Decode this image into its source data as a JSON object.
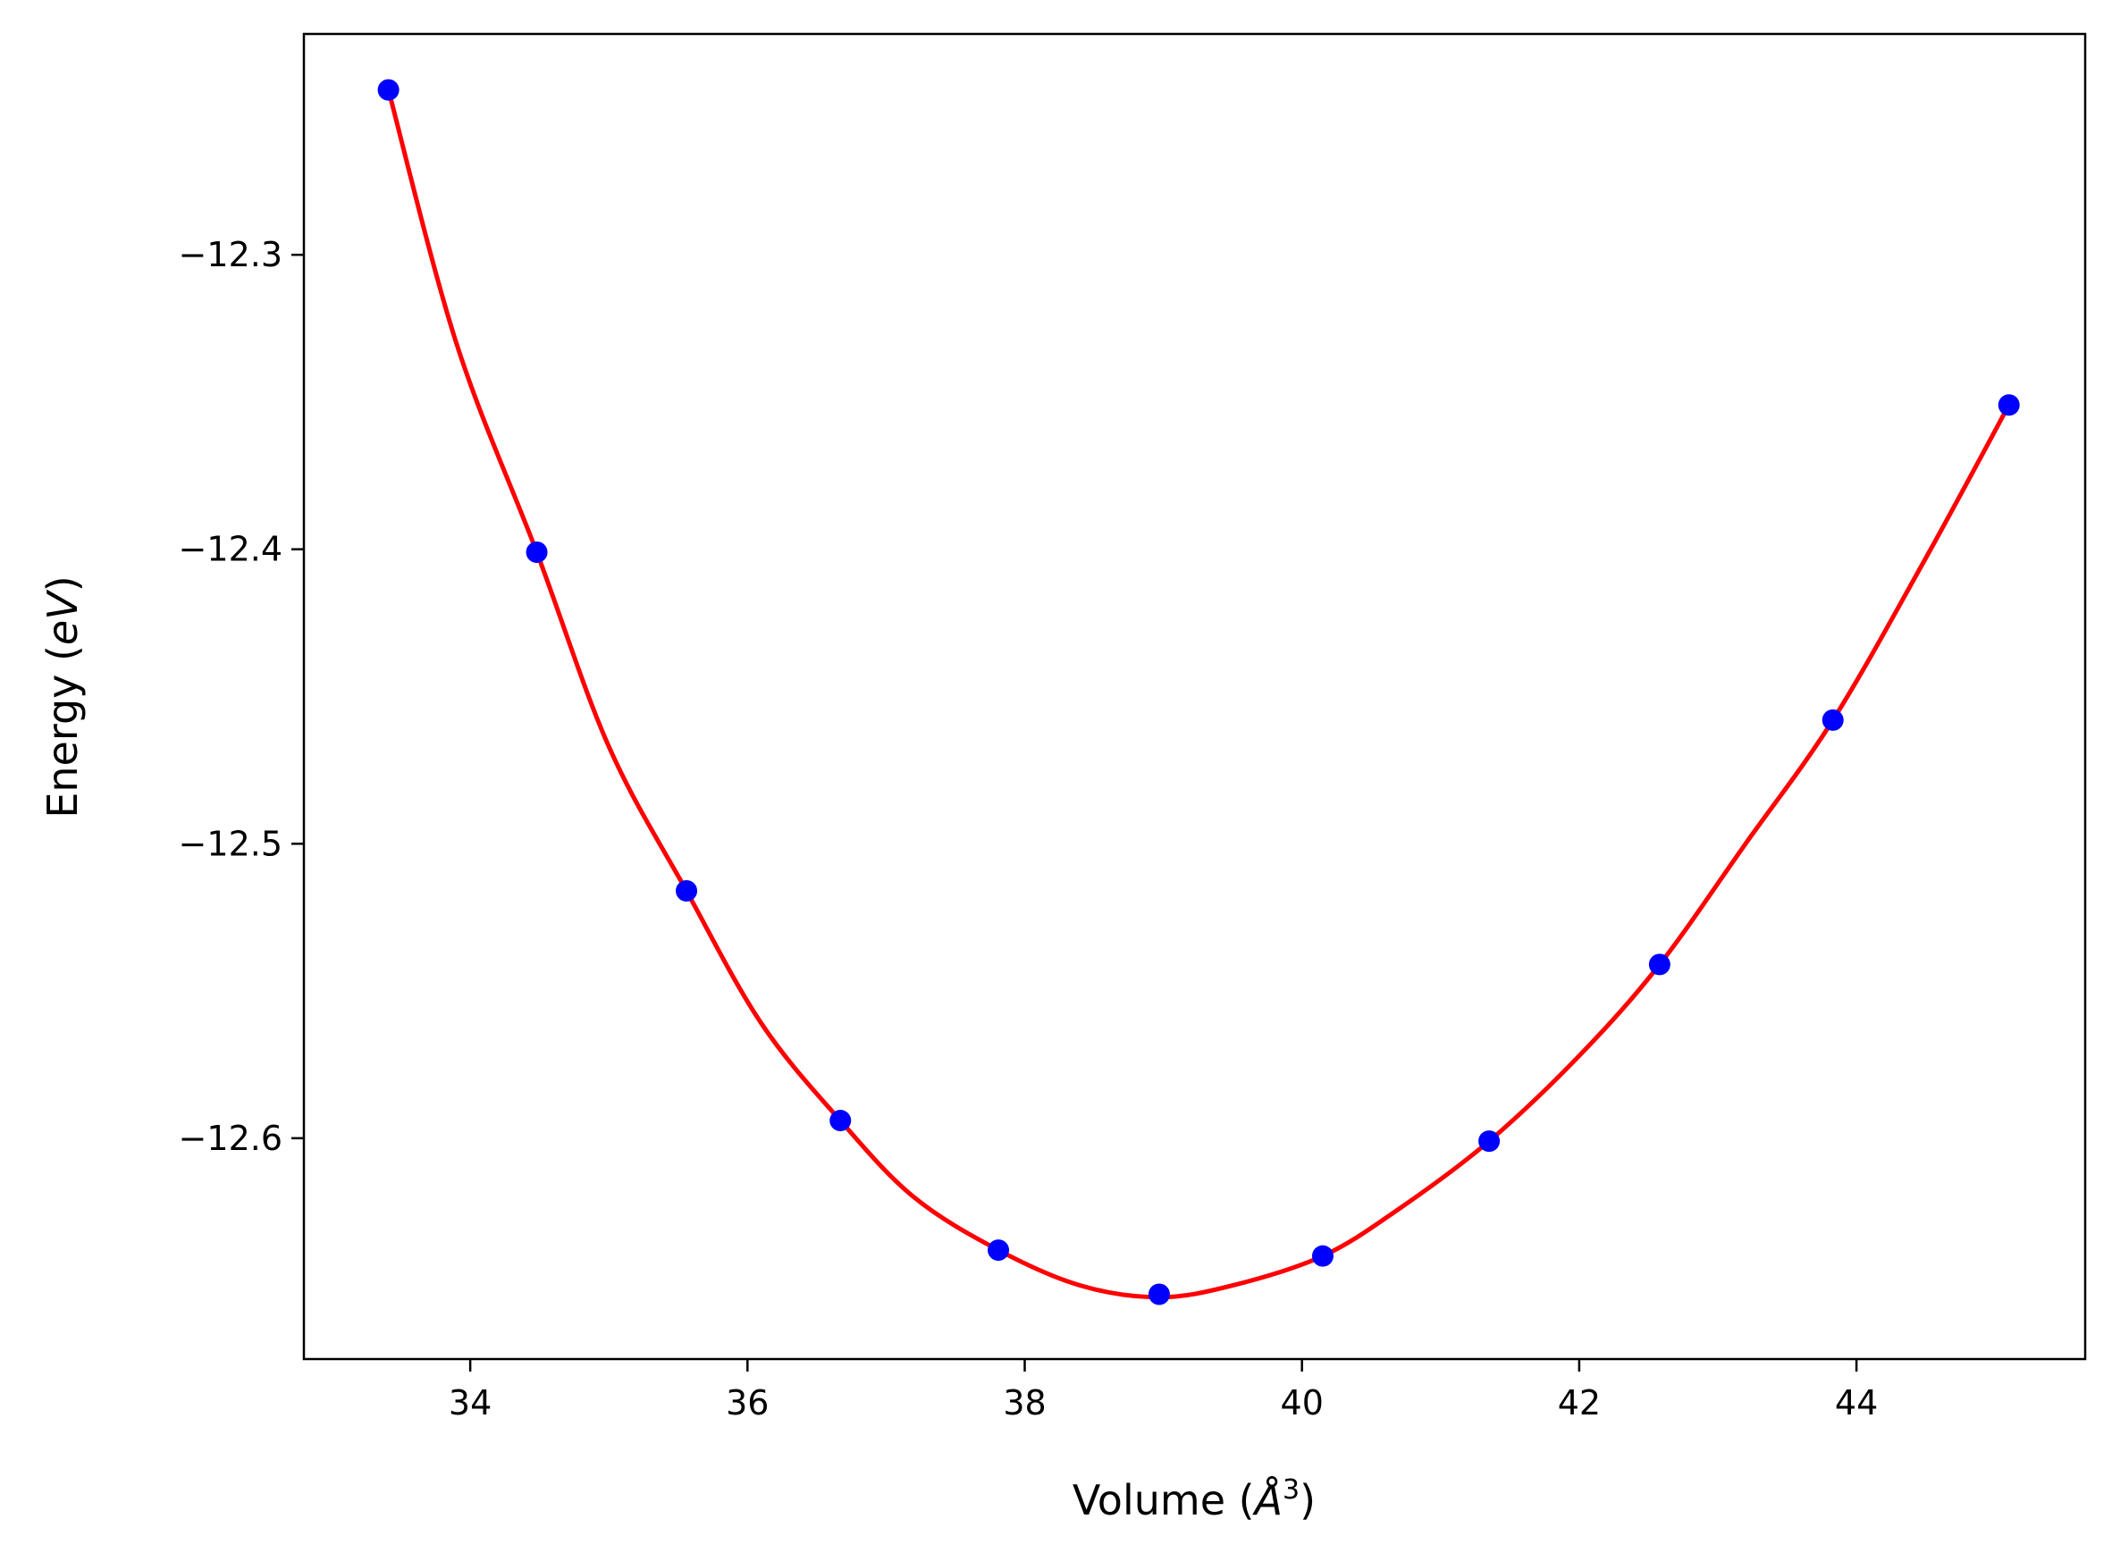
{
  "chart_data": {
    "type": "line",
    "xlabel": "Volume (Å³)",
    "xlabel_parts": {
      "text": "Volume (",
      "unit": "Å",
      "exponent": "3",
      "close": ")"
    },
    "ylabel": "Energy (eV)",
    "ylabel_parts": {
      "text": "Energy (",
      "unit": "eV",
      "close": ")"
    },
    "xlim": [
      32.8,
      45.65
    ],
    "ylim": [
      -12.675,
      -12.225
    ],
    "xticks": [
      34,
      36,
      38,
      40,
      42,
      44
    ],
    "xtick_labels": [
      "34",
      "36",
      "38",
      "40",
      "42",
      "44"
    ],
    "yticks": [
      -12.3,
      -12.4,
      -12.5,
      -12.6
    ],
    "ytick_labels": [
      "−12.3",
      "−12.4",
      "−12.5",
      "−12.6"
    ],
    "grid": false,
    "colors": {
      "fit": "#ff0000",
      "points": "#0000ff"
    },
    "series": [
      {
        "kind": "scatter",
        "x": [
          33.41,
          34.48,
          35.56,
          36.67,
          37.81,
          38.97,
          40.15,
          41.35,
          42.58,
          43.83,
          45.1
        ],
        "y": [
          -12.244,
          -12.401,
          -12.516,
          -12.594,
          -12.638,
          -12.653,
          -12.64,
          -12.601,
          -12.541,
          -12.458,
          -12.351
        ]
      },
      {
        "kind": "line",
        "x": [
          33.41,
          33.9,
          34.48,
          35.0,
          35.56,
          36.1,
          36.67,
          37.2,
          37.81,
          38.4,
          38.97,
          39.5,
          40.15,
          40.7,
          41.35,
          42.0,
          42.58,
          43.2,
          43.83,
          44.5,
          45.1
        ],
        "y": [
          -12.244,
          -12.33,
          -12.401,
          -12.467,
          -12.516,
          -12.561,
          -12.594,
          -12.62,
          -12.638,
          -12.65,
          -12.654,
          -12.65,
          -12.64,
          -12.624,
          -12.601,
          -12.572,
          -12.541,
          -12.5,
          -12.458,
          -12.403,
          -12.351
        ]
      }
    ]
  }
}
